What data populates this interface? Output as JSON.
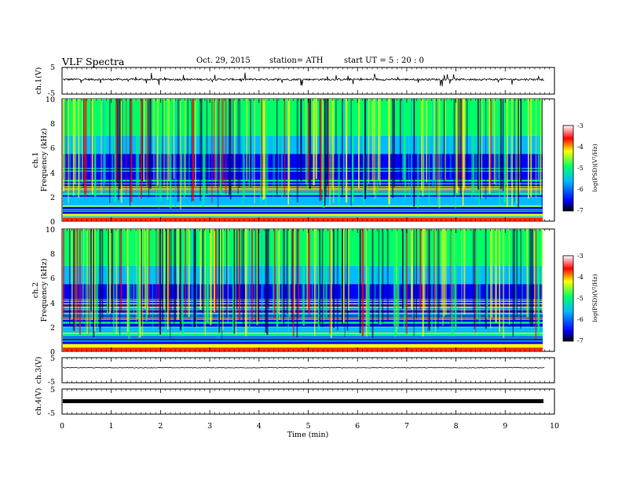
{
  "header": {
    "title": "VLF Spectra",
    "date": "Oct. 29, 2015",
    "station": "station= ATH",
    "start": "start UT = 5 : 20 : 0"
  },
  "chart_data": [
    {
      "type": "line",
      "panel": "ch1-waveform",
      "ylabel": "ch.1(V)",
      "ylim": [
        -5,
        5
      ],
      "yticks": [
        "5",
        "-5"
      ],
      "description_values": {
        "baseline_V": 0.5,
        "spike_amplitude_V": 2.5
      }
    },
    {
      "type": "heatmap",
      "panel": "ch1-spectrogram",
      "ylabel": "ch.1\nFrequency (kHz)",
      "ylim": [
        0,
        10
      ],
      "yticks": [
        "0",
        "2",
        "4",
        "6",
        "8",
        "10"
      ],
      "xlim": [
        0,
        9.8
      ],
      "colorbar": {
        "label": "log(PSD)(V²/Hz)",
        "range": [
          -7,
          -3
        ],
        "ticks": [
          "-3",
          "-4",
          "-5",
          "-6",
          "-7"
        ]
      }
    },
    {
      "type": "heatmap",
      "panel": "ch2-spectrogram",
      "ylabel": "ch.2\nFrequency (kHz)",
      "ylim": [
        0,
        10
      ],
      "yticks": [
        "0",
        "2",
        "4",
        "6",
        "8",
        "10"
      ],
      "xlim": [
        0,
        9.8
      ],
      "colorbar": {
        "label": "log(PSD)(V²/Hz)",
        "range": [
          -7,
          -3
        ],
        "ticks": [
          "-3",
          "-4",
          "-5",
          "-6",
          "-7"
        ]
      }
    },
    {
      "type": "line",
      "panel": "ch3-waveform",
      "ylabel": "ch.3(V)",
      "ylim": [
        -5,
        5
      ],
      "yticks": [
        "5",
        "-5"
      ],
      "description_values": {
        "baseline_V": 1.0
      }
    },
    {
      "type": "line",
      "panel": "ch4-waveform",
      "ylabel": "ch.4(V)",
      "ylim": [
        -5,
        5
      ],
      "yticks": [
        "5",
        "-5"
      ],
      "description_values": {
        "baseline_V": 0.0
      }
    }
  ],
  "xaxis": {
    "label": "Time (min)",
    "range": [
      0,
      10
    ],
    "ticks": [
      "0",
      "1",
      "2",
      "3",
      "4",
      "5",
      "6",
      "7",
      "8",
      "9",
      "10"
    ],
    "data_end_min": 9.8
  },
  "colors": {
    "colormap": [
      "#000000",
      "#0000ff",
      "#00bbff",
      "#00ff66",
      "#ffff00",
      "#ff0000",
      "#ffffff"
    ]
  }
}
